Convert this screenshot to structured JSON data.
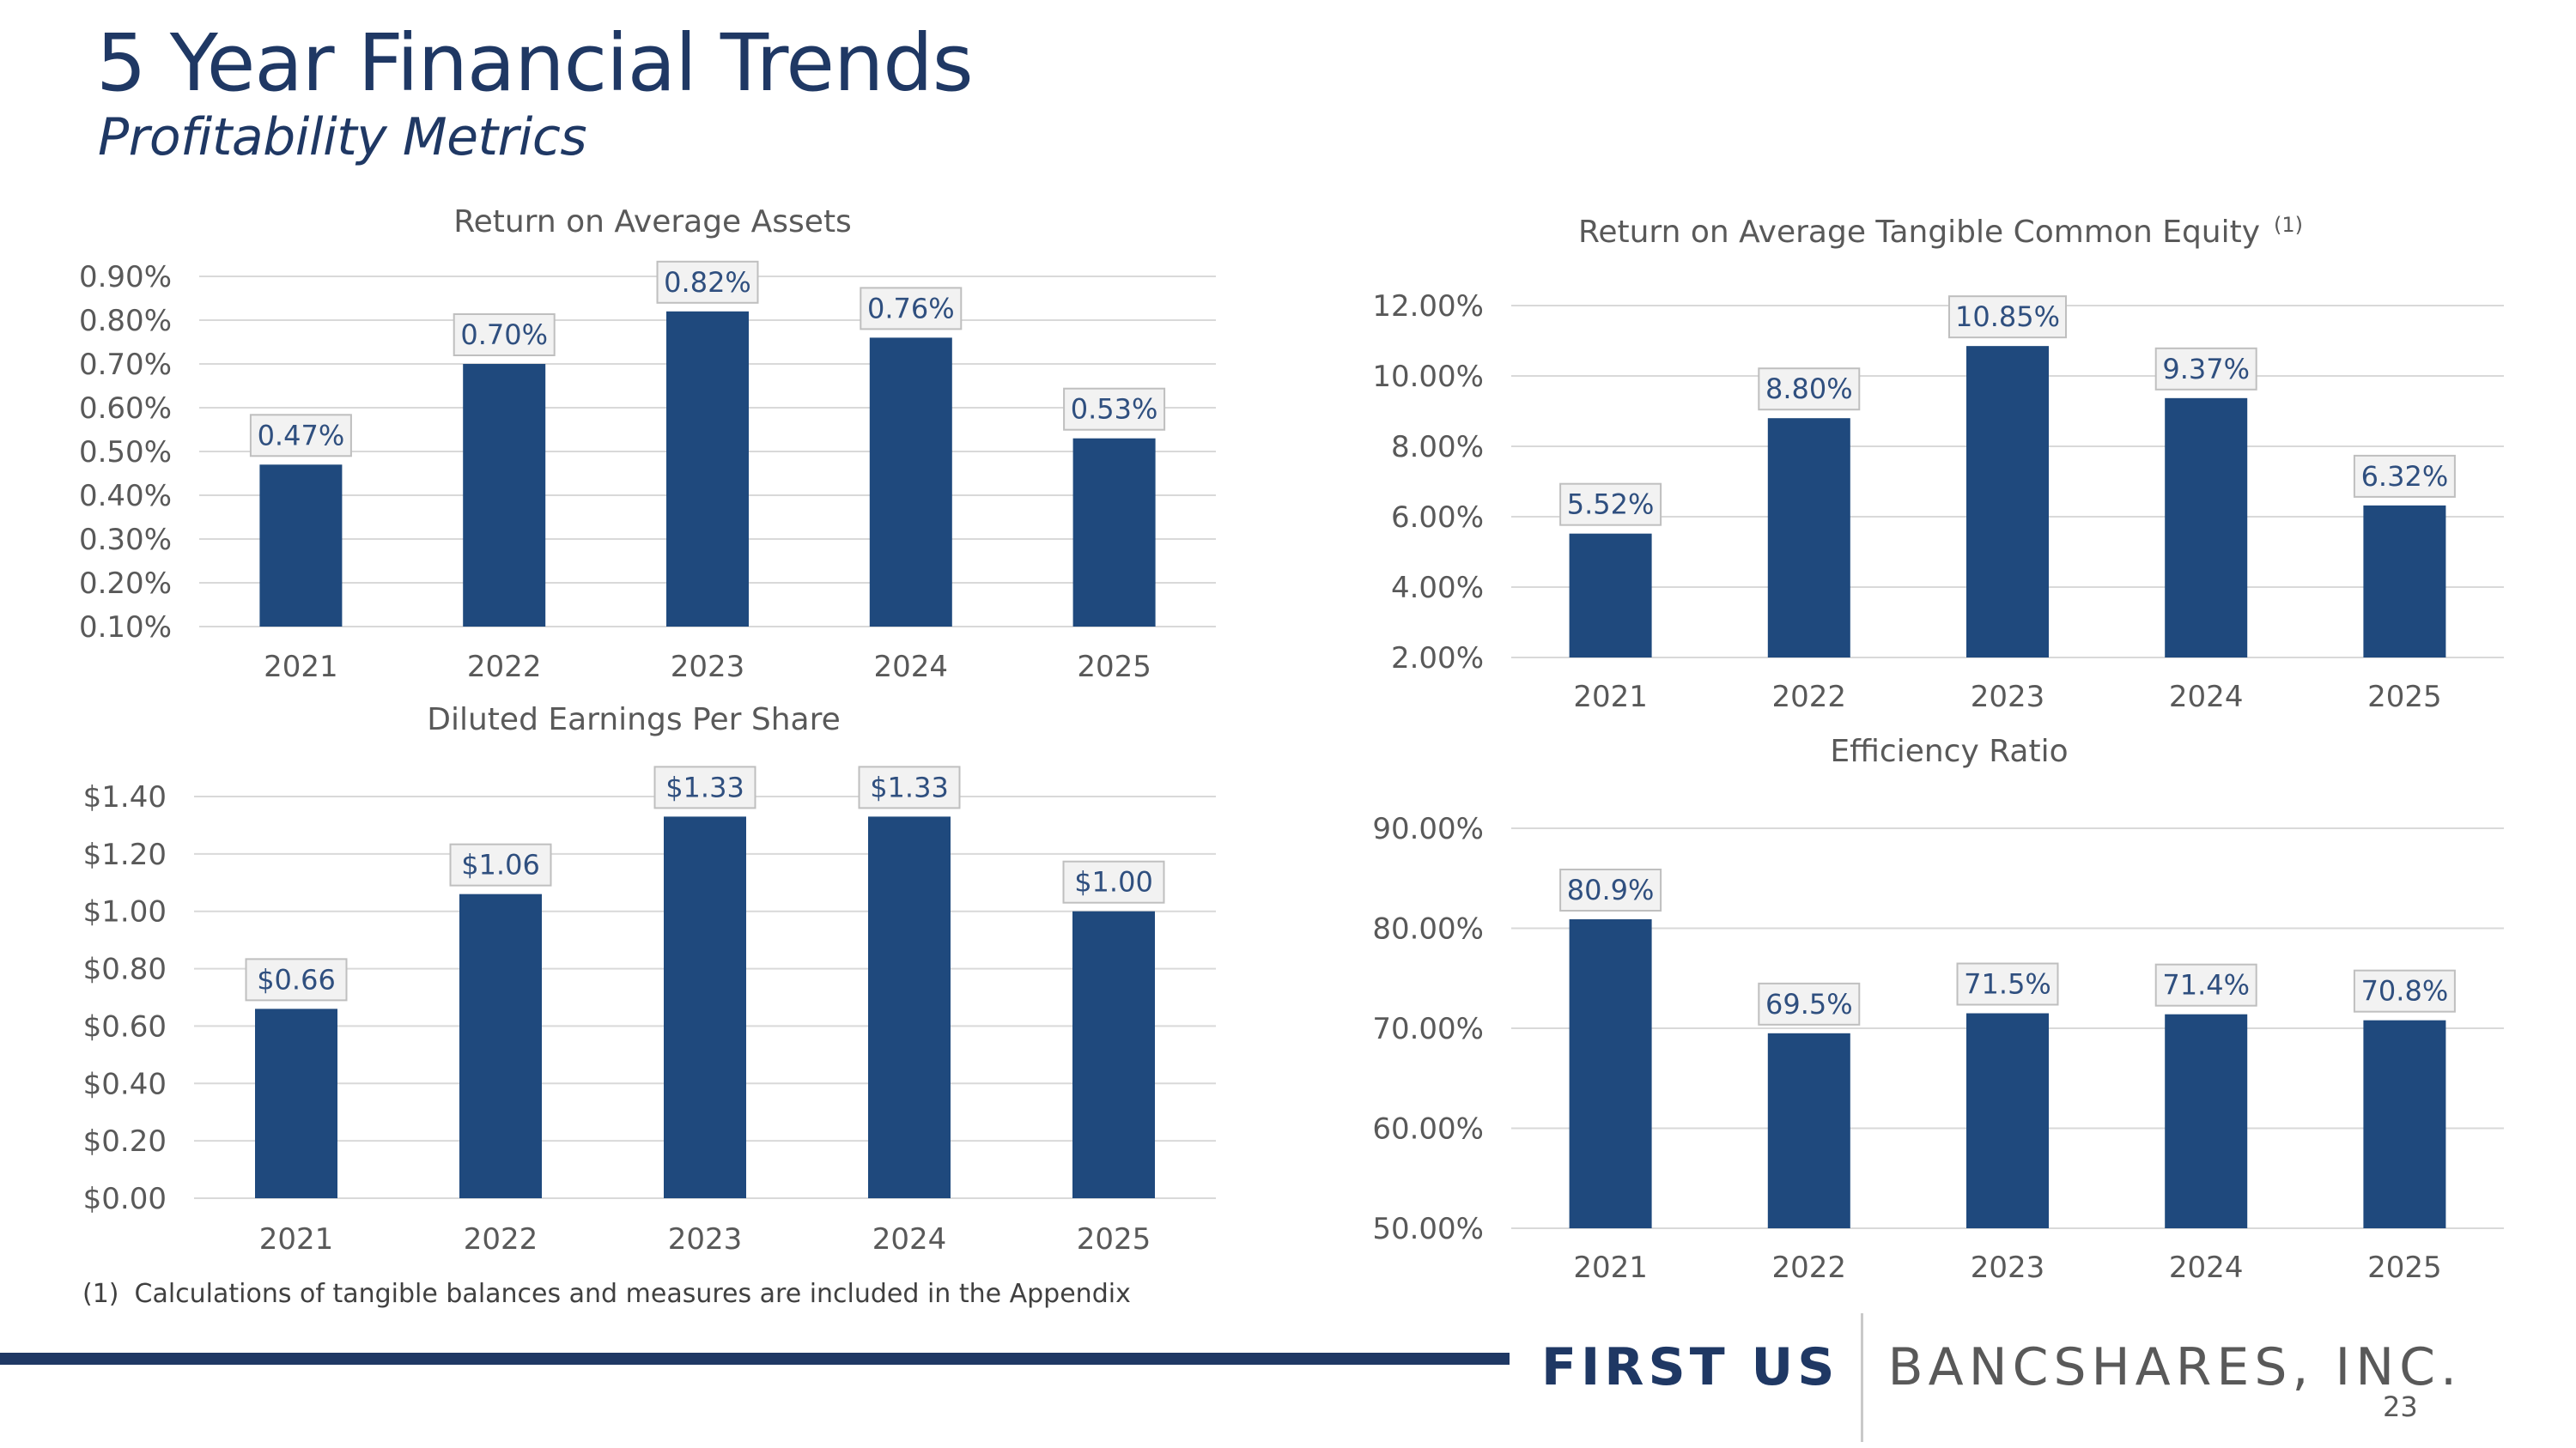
{
  "slide": {
    "title": "5 Year Financial Trends",
    "subtitle": "Profitability Metrics",
    "footnote": {
      "marker": "(1)",
      "text": "Calculations of tangible balances and measures are included in the Appendix"
    },
    "logo": {
      "primary": "FIRST US",
      "secondary": "BANCSHARES, INC."
    },
    "page_number": "23",
    "colors": {
      "bar": "#1f497d",
      "title": "#1f3864",
      "grid": "#d9d9d9",
      "label_box": "#f2f2f2",
      "label_border": "#bfbfbf"
    }
  },
  "chart_data": [
    {
      "id": "roaa",
      "type": "bar",
      "title": "Return on Average Assets",
      "title_superscript": "",
      "categories": [
        "2021",
        "2022",
        "2023",
        "2024",
        "2025"
      ],
      "values": [
        0.47,
        0.7,
        0.82,
        0.76,
        0.53
      ],
      "value_labels": [
        "0.47%",
        "0.70%",
        "0.82%",
        "0.76%",
        "0.53%"
      ],
      "ylim": [
        0.1,
        0.9
      ],
      "yticks": [
        0.9,
        0.8,
        0.7,
        0.6,
        0.5,
        0.4,
        0.3,
        0.2,
        0.1
      ],
      "ytick_labels": [
        "0.90%",
        "0.80%",
        "0.70%",
        "0.60%",
        "0.50%",
        "0.40%",
        "0.30%",
        "0.20%",
        "0.10%"
      ],
      "grid": true,
      "legend": "none"
    },
    {
      "id": "rotce",
      "type": "bar",
      "title": "Return on Average Tangible Common Equity",
      "title_superscript": "(1)",
      "categories": [
        "2021",
        "2022",
        "2023",
        "2024",
        "2025"
      ],
      "values": [
        5.52,
        8.8,
        10.85,
        9.37,
        6.32
      ],
      "value_labels": [
        "5.52%",
        "8.80%",
        "10.85%",
        "9.37%",
        "6.32%"
      ],
      "ylim": [
        2.0,
        12.0
      ],
      "yticks": [
        12.0,
        10.0,
        8.0,
        6.0,
        4.0,
        2.0
      ],
      "ytick_labels": [
        "12.00%",
        "10.00%",
        "8.00%",
        "6.00%",
        "4.00%",
        "2.00%"
      ],
      "grid": true,
      "legend": "none"
    },
    {
      "id": "eps",
      "type": "bar",
      "title": "Diluted Earnings Per Share",
      "title_superscript": "",
      "categories": [
        "2021",
        "2022",
        "2023",
        "2024",
        "2025"
      ],
      "values": [
        0.66,
        1.06,
        1.33,
        1.33,
        1.0
      ],
      "value_labels": [
        "$0.66",
        "$1.06",
        "$1.33",
        "$1.33",
        "$1.00"
      ],
      "ylim": [
        0.0,
        1.4
      ],
      "yticks": [
        1.4,
        1.2,
        1.0,
        0.8,
        0.6,
        0.4,
        0.2,
        0.0
      ],
      "ytick_labels": [
        "$1.40",
        "$1.20",
        "$1.00",
        "$0.80",
        "$0.60",
        "$0.40",
        "$0.20",
        "$0.00"
      ],
      "grid": true,
      "legend": "none"
    },
    {
      "id": "efficiency",
      "type": "bar",
      "title": "Efficiency Ratio",
      "title_superscript": "",
      "categories": [
        "2021",
        "2022",
        "2023",
        "2024",
        "2025"
      ],
      "values": [
        80.9,
        69.5,
        71.5,
        71.4,
        70.8
      ],
      "value_labels": [
        "80.9%",
        "69.5%",
        "71.5%",
        "71.4%",
        "70.8%"
      ],
      "ylim": [
        50.0,
        90.0
      ],
      "yticks": [
        90.0,
        80.0,
        70.0,
        60.0,
        50.0
      ],
      "ytick_labels": [
        "90.00%",
        "80.00%",
        "70.00%",
        "60.00%",
        "50.00%"
      ],
      "grid": true,
      "legend": "none"
    }
  ]
}
